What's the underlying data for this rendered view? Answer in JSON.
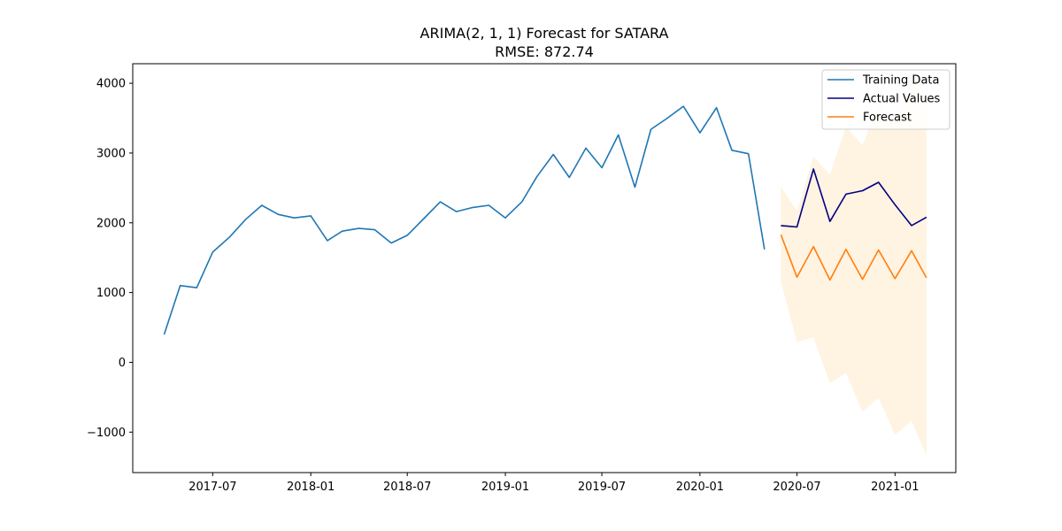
{
  "chart_data": {
    "type": "line",
    "title": "ARIMA(2, 1, 1) Forecast for SATARA",
    "subtitle": "RMSE: 872.74",
    "xlabel": "",
    "ylabel": "",
    "x_ticks": [
      "2017-07",
      "2018-01",
      "2018-07",
      "2019-01",
      "2019-07",
      "2020-01",
      "2020-07",
      "2021-01"
    ],
    "y_ticks": [
      -1000,
      0,
      1000,
      2000,
      3000,
      4000
    ],
    "xlim": [
      "2017-02-01",
      "2021-04-25"
    ],
    "ylim": [
      -1580,
      4280
    ],
    "grid": false,
    "legend_position": "top-right",
    "series": [
      {
        "name": "Training Data",
        "color": "#1f77b4",
        "x": [
          "2017-04",
          "2017-05",
          "2017-06",
          "2017-07",
          "2017-08",
          "2017-09",
          "2017-10",
          "2017-11",
          "2017-12",
          "2018-01",
          "2018-02",
          "2018-03",
          "2018-04",
          "2018-05",
          "2018-06",
          "2018-07",
          "2018-08",
          "2018-09",
          "2018-10",
          "2018-11",
          "2018-12",
          "2019-01",
          "2019-02",
          "2019-03",
          "2019-04",
          "2019-05",
          "2019-06",
          "2019-07",
          "2019-08",
          "2019-09",
          "2019-10",
          "2019-11",
          "2019-12",
          "2020-01",
          "2020-02",
          "2020-03",
          "2020-04",
          "2020-05"
        ],
        "values": [
          400,
          1100,
          1070,
          1580,
          1790,
          2050,
          2250,
          2120,
          2070,
          2100,
          1745,
          1880,
          1920,
          1900,
          1710,
          1820,
          2060,
          2300,
          2160,
          2220,
          2250,
          2070,
          2300,
          2660,
          2980,
          2650,
          3070,
          2790,
          3260,
          2510,
          3340,
          3500,
          3670,
          3290,
          3650,
          3040,
          2990,
          1620
        ]
      },
      {
        "name": "Actual Values",
        "color": "#000080",
        "x": [
          "2020-06",
          "2020-07",
          "2020-08",
          "2020-09",
          "2020-10",
          "2020-11",
          "2020-12",
          "2021-01",
          "2021-02",
          "2021-03"
        ],
        "values": [
          1960,
          1940,
          2770,
          2020,
          2410,
          2460,
          2580,
          2260,
          1960,
          2080
        ]
      },
      {
        "name": "Forecast",
        "color": "#ff7f0e",
        "x": [
          "2020-06",
          "2020-07",
          "2020-08",
          "2020-09",
          "2020-10",
          "2020-11",
          "2020-12",
          "2021-01",
          "2021-02",
          "2021-03"
        ],
        "values": [
          1830,
          1220,
          1660,
          1180,
          1620,
          1190,
          1610,
          1200,
          1600,
          1210
        ],
        "ci_lower": [
          1160,
          290,
          360,
          -300,
          -150,
          -710,
          -510,
          -1040,
          -840,
          -1330
        ],
        "ci_upper": [
          2520,
          2170,
          2950,
          2690,
          3380,
          3110,
          3720,
          3470,
          4060,
          3760
        ],
        "ci_color": "#fff3e2"
      }
    ]
  }
}
